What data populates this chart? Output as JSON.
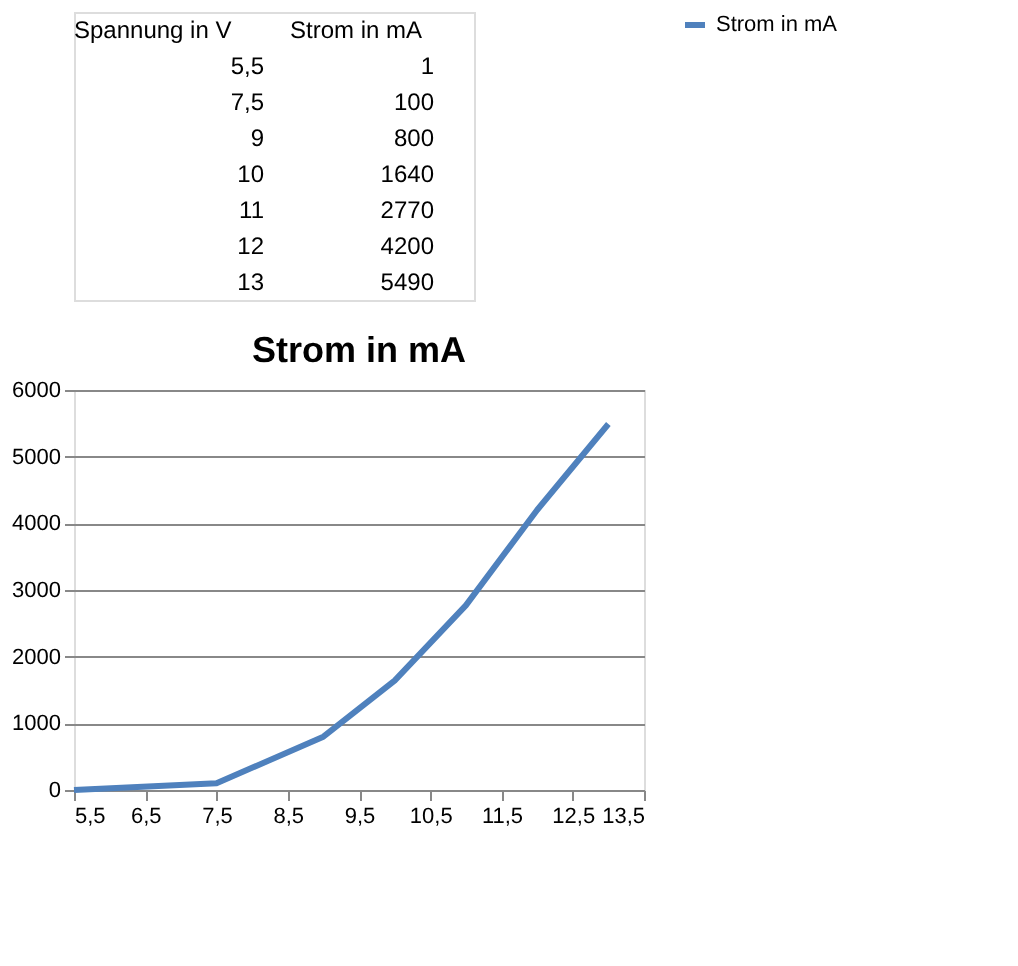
{
  "chart_data": [
    {
      "type": "other",
      "annotations": [
        "Spannung in V",
        "Strom in mA",
        "5,5",
        "1",
        "7,5",
        "100",
        "9",
        "800",
        "10",
        "1640",
        "11",
        "2770",
        "12",
        "4200",
        "13",
        "5490"
      ]
    },
    {
      "type": "line",
      "title": "Strom in mA",
      "x": [
        5.5,
        7.5,
        9,
        10,
        11,
        12,
        13
      ],
      "series": [
        {
          "name": "Strom in mA",
          "color": "#4f81bd",
          "values": [
            1,
            100,
            800,
            1640,
            2770,
            4200,
            5490
          ]
        }
      ],
      "xlim": [
        5.5,
        13.5
      ],
      "xticks": [
        {
          "value": 5.5,
          "label": "5,5"
        },
        {
          "value": 6.5,
          "label": "6,5"
        },
        {
          "value": 7.5,
          "label": "7,5"
        },
        {
          "value": 8.5,
          "label": "8,5"
        },
        {
          "value": 9.5,
          "label": "9,5"
        },
        {
          "value": 10.5,
          "label": "10,5"
        },
        {
          "value": 11.5,
          "label": "11,5"
        },
        {
          "value": 12.5,
          "label": "12,5"
        },
        {
          "value": 13.5,
          "label": "13,5"
        }
      ],
      "ylim": [
        0,
        6000
      ],
      "yticks": [
        0,
        1000,
        2000,
        3000,
        4000,
        5000,
        6000
      ],
      "grid": "y",
      "legend": "right",
      "marker": "none",
      "line_style": "solid"
    }
  ]
}
